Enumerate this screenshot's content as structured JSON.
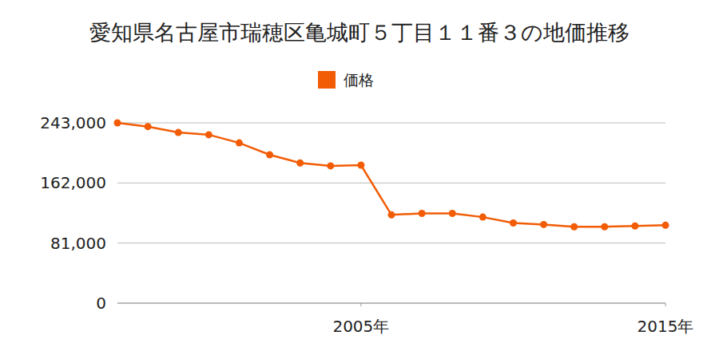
{
  "chart_data": {
    "type": "line",
    "title": "愛知県名古屋市瑞穂区亀城町５丁目１１番３の地価推移",
    "x": [
      1997,
      1998,
      1999,
      2000,
      2001,
      2002,
      2003,
      2004,
      2005,
      2006,
      2007,
      2008,
      2009,
      2010,
      2011,
      2012,
      2013,
      2014,
      2015
    ],
    "series": [
      {
        "name": "価格",
        "color": "#f25c05",
        "values": [
          243000,
          238000,
          230000,
          227000,
          216000,
          200000,
          189000,
          185000,
          186000,
          119000,
          121000,
          121000,
          116000,
          108000,
          106000,
          103000,
          103000,
          104000,
          105000
        ]
      }
    ],
    "xlim": [
      1997,
      2015
    ],
    "xticks": [
      {
        "value": 2005,
        "label": "2005年"
      },
      {
        "value": 2015,
        "label": "2015年"
      }
    ],
    "ylim": [
      0,
      243000
    ],
    "yticks": [
      0,
      {
        "value": 81000,
        "label": "81,000"
      },
      {
        "value": 162000,
        "label": "162,000"
      },
      {
        "value": 243000,
        "label": "243,000"
      }
    ],
    "grid": true,
    "legend": "top",
    "marker": "circle"
  }
}
